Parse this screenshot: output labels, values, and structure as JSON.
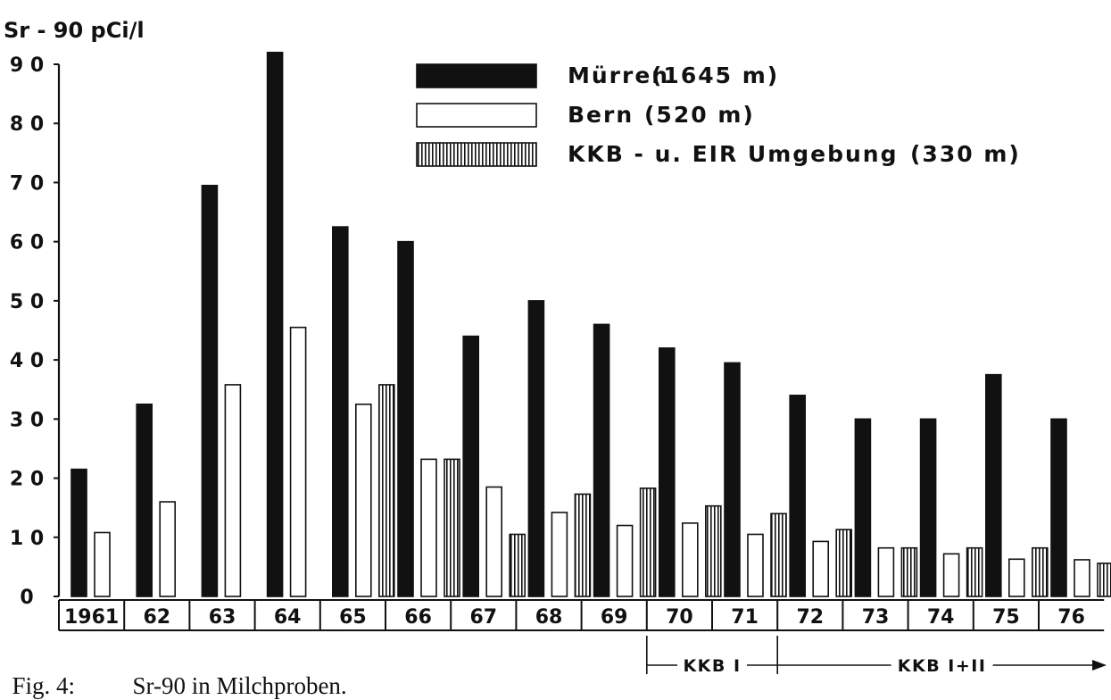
{
  "chart_data": {
    "type": "bar",
    "ylabel": "Sr - 90 pCi/l",
    "ylim": [
      0,
      92
    ],
    "yticks": [
      0,
      10,
      20,
      30,
      40,
      50,
      60,
      70,
      80,
      90
    ],
    "categories": [
      "1961",
      "62",
      "63",
      "64",
      "65",
      "66",
      "67",
      "68",
      "69",
      "70",
      "71",
      "72",
      "73",
      "74",
      "75",
      "76"
    ],
    "series": [
      {
        "name": "Mürren",
        "elevation": "(1645 m)",
        "pattern": "solid",
        "values": [
          21.5,
          32.5,
          69.5,
          92,
          62.5,
          60,
          44,
          50,
          46,
          42,
          39.5,
          34,
          30,
          30,
          37.5,
          30
        ]
      },
      {
        "name": "Bern",
        "elevation": "(520 m)",
        "pattern": "hollow",
        "values": [
          10.8,
          16,
          35.8,
          45.5,
          32.5,
          23.2,
          18.5,
          14.2,
          12,
          12.4,
          10.5,
          9.3,
          8.2,
          7.2,
          6.3,
          6.2
        ]
      },
      {
        "name": "KKB - u. EIR Umgebung",
        "elevation": "(330 m)",
        "pattern": "striped",
        "values": [
          null,
          null,
          null,
          null,
          35.8,
          23.2,
          10.5,
          17.3,
          18.3,
          15.3,
          14,
          11.3,
          8.2,
          8.2,
          8.2,
          5.6
        ]
      }
    ],
    "legend_position": "top-right",
    "period_annotations": [
      {
        "label": "KKB I",
        "from": "70",
        "to": "72"
      },
      {
        "label": "KKB I+II",
        "from": "72",
        "to": "76"
      }
    ]
  },
  "caption": {
    "figure_label": "Fig. 4:",
    "text": "Sr-90 in Milchproben."
  }
}
